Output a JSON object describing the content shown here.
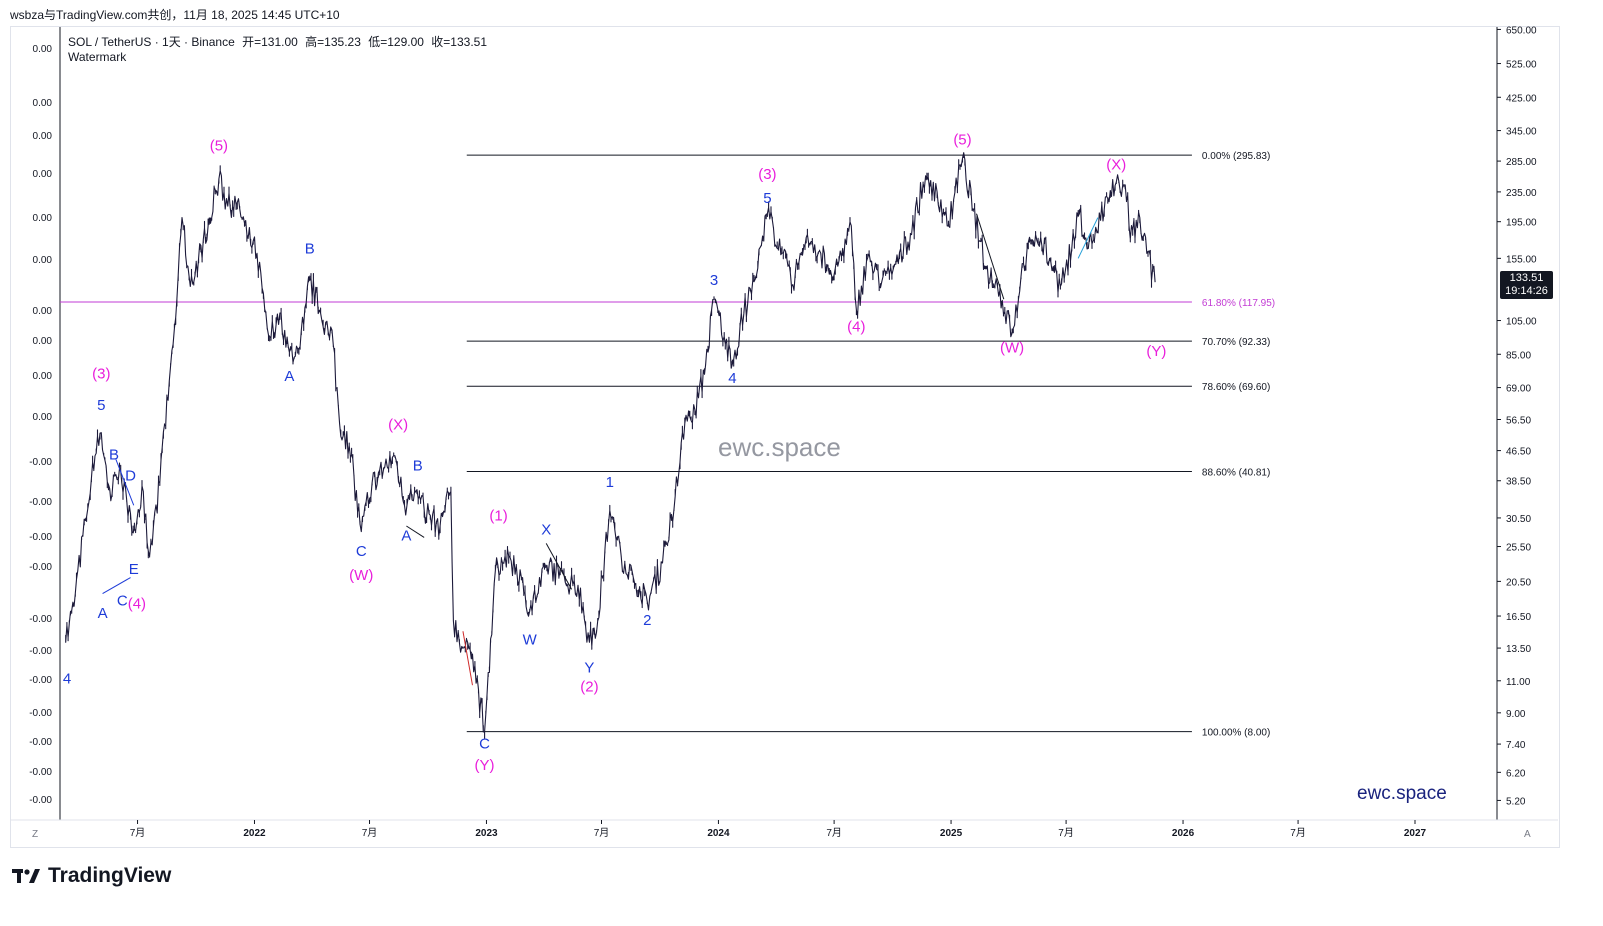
{
  "header": {
    "title": "wsbza与TradingView.com共创，11月 18, 2025 14:45 UTC+10"
  },
  "legend": {
    "symbol": "SOL / TetherUS · 1天 · Binance",
    "open_label": "开=",
    "open": "131.00",
    "high_label": "高=",
    "high": "135.23",
    "low_label": "低=",
    "low": "129.00",
    "close_label": "收=",
    "close": "133.51",
    "watermark": "Watermark"
  },
  "price_tag": {
    "price": "133.51",
    "countdown": "19:14:26"
  },
  "watermarks": {
    "center": "ewc.space",
    "bottom_right": "ewc.space"
  },
  "brand": {
    "name": "TradingView"
  },
  "corners": {
    "bottom_left": "Z",
    "bottom_right": "A"
  },
  "colors": {
    "candles": "#1c1a3a",
    "fib_line": "#131722",
    "fib_highlight": "#c23bd4",
    "wave_blue": "#1e3cd8",
    "wave_magenta": "#e91edb",
    "price_tag_bg": "#131722"
  },
  "chart_data": {
    "type": "line",
    "scale": "log",
    "title": "SOL / TetherUS · 1天 · Binance",
    "xlabel": "",
    "ylabel": "",
    "ylim": [
      4.6,
      660
    ],
    "x_ticks": [
      "7月",
      "2022",
      "7月",
      "2023",
      "7月",
      "2024",
      "7月",
      "2025",
      "7月",
      "2026",
      "7月",
      "2027"
    ],
    "x_tick_dates": [
      "2021-07-01",
      "2022-01-01",
      "2022-07-01",
      "2023-01-01",
      "2023-07-01",
      "2024-01-01",
      "2024-07-01",
      "2025-01-01",
      "2025-07-01",
      "2026-01-01",
      "2026-07-01",
      "2027-01-01"
    ],
    "y_ticks": [
      "650.00",
      "525.00",
      "425.00",
      "345.00",
      "285.00",
      "235.00",
      "195.00",
      "155.00",
      "105.00",
      "85.00",
      "69.00",
      "56.50",
      "46.50",
      "38.50",
      "30.50",
      "25.50",
      "20.50",
      "16.50",
      "13.50",
      "11.00",
      "9.00",
      "7.40",
      "6.20",
      "5.20"
    ],
    "left_axis_labels": [
      "0.00",
      "0.00",
      "0.00",
      "0.00",
      "0.00",
      "0.00",
      "0.00",
      "0.00",
      "0.00",
      "0.00",
      "-0.00",
      "-0.00",
      "-0.00",
      "-0.00",
      "-0.00",
      "-0.00",
      "-0.00",
      "-0.00",
      "-0.00",
      "-0.00",
      "-0.00"
    ],
    "series": [
      {
        "points": [
          [
            "2021-03-10",
            14
          ],
          [
            "2021-03-25",
            19
          ],
          [
            "2021-04-10",
            30
          ],
          [
            "2021-04-25",
            45
          ],
          [
            "2021-05-05",
            52
          ],
          [
            "2021-05-20",
            34
          ],
          [
            "2021-05-28",
            40
          ],
          [
            "2021-06-10",
            38
          ],
          [
            "2021-06-22",
            28
          ],
          [
            "2021-07-10",
            36
          ],
          [
            "2021-07-20",
            24
          ],
          [
            "2021-08-05",
            38
          ],
          [
            "2021-08-20",
            72
          ],
          [
            "2021-09-01",
            120
          ],
          [
            "2021-09-09",
            200
          ],
          [
            "2021-09-22",
            130
          ],
          [
            "2021-10-05",
            155
          ],
          [
            "2021-10-20",
            190
          ],
          [
            "2021-11-06",
            255
          ],
          [
            "2021-11-20",
            215
          ],
          [
            "2021-12-05",
            220
          ],
          [
            "2021-12-20",
            180
          ],
          [
            "2022-01-05",
            160
          ],
          [
            "2022-01-25",
            95
          ],
          [
            "2022-02-10",
            110
          ],
          [
            "2022-02-25",
            86
          ],
          [
            "2022-03-10",
            88
          ],
          [
            "2022-03-29",
            135
          ],
          [
            "2022-04-15",
            110
          ],
          [
            "2022-05-05",
            90
          ],
          [
            "2022-05-15",
            55
          ],
          [
            "2022-05-30",
            48
          ],
          [
            "2022-06-18",
            28
          ],
          [
            "2022-07-05",
            38
          ],
          [
            "2022-07-25",
            42
          ],
          [
            "2022-08-10",
            45
          ],
          [
            "2022-08-25",
            33
          ],
          [
            "2022-09-10",
            36
          ],
          [
            "2022-09-25",
            32
          ],
          [
            "2022-10-20",
            29
          ],
          [
            "2022-11-06",
            36
          ],
          [
            "2022-11-10",
            16
          ],
          [
            "2022-11-25",
            13.5
          ],
          [
            "2022-12-10",
            13
          ],
          [
            "2022-12-29",
            8.0
          ],
          [
            "2023-01-15",
            22
          ],
          [
            "2023-02-05",
            24
          ],
          [
            "2023-02-25",
            21
          ],
          [
            "2023-03-10",
            17
          ],
          [
            "2023-04-10",
            23
          ],
          [
            "2023-04-25",
            21
          ],
          [
            "2023-05-25",
            20
          ],
          [
            "2023-06-12",
            14
          ],
          [
            "2023-06-25",
            16
          ],
          [
            "2023-07-14",
            32
          ],
          [
            "2023-08-01",
            24
          ],
          [
            "2023-08-20",
            21
          ],
          [
            "2023-09-11",
            18
          ],
          [
            "2023-10-05",
            23
          ],
          [
            "2023-10-25",
            35
          ],
          [
            "2023-11-11",
            58
          ],
          [
            "2023-11-25",
            60
          ],
          [
            "2023-12-10",
            75
          ],
          [
            "2023-12-25",
            120
          ],
          [
            "2024-01-10",
            95
          ],
          [
            "2024-01-23",
            80
          ],
          [
            "2024-02-10",
            110
          ],
          [
            "2024-03-01",
            140
          ],
          [
            "2024-03-18",
            205
          ],
          [
            "2024-04-12",
            160
          ],
          [
            "2024-04-25",
            130
          ],
          [
            "2024-05-20",
            180
          ],
          [
            "2024-06-10",
            160
          ],
          [
            "2024-07-01",
            140
          ],
          [
            "2024-07-28",
            190
          ],
          [
            "2024-08-05",
            112
          ],
          [
            "2024-08-25",
            160
          ],
          [
            "2024-09-10",
            130
          ],
          [
            "2024-10-10",
            150
          ],
          [
            "2024-10-29",
            180
          ],
          [
            "2024-11-22",
            260
          ],
          [
            "2024-12-10",
            235
          ],
          [
            "2024-12-28",
            190
          ],
          [
            "2025-01-19",
            290
          ],
          [
            "2025-02-05",
            210
          ],
          [
            "2025-02-25",
            145
          ],
          [
            "2025-03-15",
            130
          ],
          [
            "2025-04-07",
            97
          ],
          [
            "2025-04-25",
            150
          ],
          [
            "2025-05-14",
            180
          ],
          [
            "2025-06-05",
            155
          ],
          [
            "2025-06-22",
            130
          ],
          [
            "2025-07-10",
            165
          ],
          [
            "2025-07-22",
            205
          ],
          [
            "2025-08-05",
            165
          ],
          [
            "2025-08-30",
            210
          ],
          [
            "2025-09-18",
            250
          ],
          [
            "2025-10-06",
            230
          ],
          [
            "2025-10-10",
            175
          ],
          [
            "2025-10-25",
            200
          ],
          [
            "2025-11-05",
            160
          ],
          [
            "2025-11-18",
            133.51
          ]
        ]
      }
    ],
    "fib_levels": [
      {
        "label": "0.00% (295.83)",
        "value": 295.83
      },
      {
        "label": "61.80% (117.95)",
        "value": 117.95
      },
      {
        "label": "70.70% (92.33)",
        "value": 92.33
      },
      {
        "label": "78.60% (69.60)",
        "value": 69.6
      },
      {
        "label": "88.60% (40.81)",
        "value": 40.81
      },
      {
        "label": "100.00% (8.00)",
        "value": 8.0
      }
    ],
    "annotations": [
      {
        "text": "4",
        "color": "blue",
        "x": "2021-03-12",
        "y": 10.8
      },
      {
        "text": "(3)",
        "color": "magenta",
        "x": "2021-05-05",
        "y": 73
      },
      {
        "text": "5",
        "color": "blue",
        "x": "2021-05-05",
        "y": 60
      },
      {
        "text": "B",
        "color": "blue",
        "x": "2021-05-25",
        "y": 44
      },
      {
        "text": "D",
        "color": "blue",
        "x": "2021-06-20",
        "y": 38.5
      },
      {
        "text": "A",
        "color": "blue",
        "x": "2021-05-07",
        "y": 16.3
      },
      {
        "text": "C",
        "color": "blue",
        "x": "2021-06-07",
        "y": 17.6
      },
      {
        "text": "(4)",
        "color": "magenta",
        "x": "2021-06-30",
        "y": 17.3
      },
      {
        "text": "E",
        "color": "blue",
        "x": "2021-06-25",
        "y": 21.5
      },
      {
        "text": "(5)",
        "color": "magenta",
        "x": "2021-11-06",
        "y": 305
      },
      {
        "text": "B",
        "color": "blue",
        "x": "2022-03-29",
        "y": 160
      },
      {
        "text": "A",
        "color": "blue",
        "x": "2022-02-25",
        "y": 72
      },
      {
        "text": "(X)",
        "color": "magenta",
        "x": "2022-08-15",
        "y": 53
      },
      {
        "text": "B",
        "color": "blue",
        "x": "2022-09-15",
        "y": 41
      },
      {
        "text": "C",
        "color": "blue",
        "x": "2022-06-18",
        "y": 24
      },
      {
        "text": "A",
        "color": "blue",
        "x": "2022-08-28",
        "y": 26.5
      },
      {
        "text": "(W)",
        "color": "magenta",
        "x": "2022-06-18",
        "y": 20.7
      },
      {
        "text": "(1)",
        "color": "magenta",
        "x": "2023-01-20",
        "y": 30
      },
      {
        "text": "X",
        "color": "blue",
        "x": "2023-04-05",
        "y": 27.5
      },
      {
        "text": "W",
        "color": "blue",
        "x": "2023-03-10",
        "y": 13.8
      },
      {
        "text": "Y",
        "color": "blue",
        "x": "2023-06-12",
        "y": 11.6
      },
      {
        "text": "(2)",
        "color": "magenta",
        "x": "2023-06-12",
        "y": 10.3
      },
      {
        "text": "C",
        "color": "blue",
        "x": "2022-12-29",
        "y": 7.2
      },
      {
        "text": "(Y)",
        "color": "magenta",
        "x": "2022-12-29",
        "y": 6.3
      },
      {
        "text": "1",
        "color": "blue",
        "x": "2023-07-14",
        "y": 37
      },
      {
        "text": "2",
        "color": "blue",
        "x": "2023-09-11",
        "y": 15.6
      },
      {
        "text": "3",
        "color": "blue",
        "x": "2023-12-25",
        "y": 131
      },
      {
        "text": "4",
        "color": "blue",
        "x": "2024-01-23",
        "y": 71
      },
      {
        "text": "(3)",
        "color": "magenta",
        "x": "2024-03-18",
        "y": 255
      },
      {
        "text": "5",
        "color": "blue",
        "x": "2024-03-18",
        "y": 219
      },
      {
        "text": "(4)",
        "color": "magenta",
        "x": "2024-08-05",
        "y": 98
      },
      {
        "text": "(5)",
        "color": "magenta",
        "x": "2025-01-19",
        "y": 316
      },
      {
        "text": "(W)",
        "color": "magenta",
        "x": "2025-04-07",
        "y": 86
      },
      {
        "text": "(X)",
        "color": "magenta",
        "x": "2025-09-18",
        "y": 270
      },
      {
        "text": "(Y)",
        "color": "magenta",
        "x": "2025-11-20",
        "y": 84
      }
    ]
  }
}
